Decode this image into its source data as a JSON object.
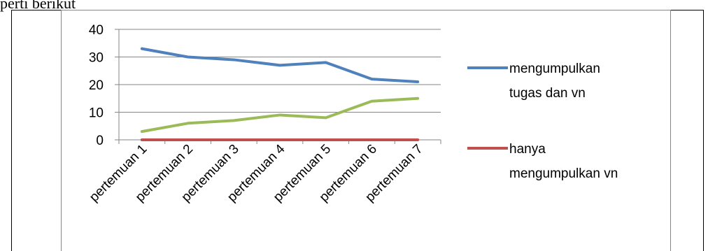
{
  "document": {
    "caption_fragment": "perti berikut"
  },
  "chart_data": {
    "type": "line",
    "categories": [
      "pertemuan 1",
      "pertemuan 2",
      "pertemuan 3",
      "pertemuan 4",
      "pertemuan 5",
      "pertemuan 6",
      "pertemuan 7"
    ],
    "series": [
      {
        "name": "mengumpulkan tugas dan vn",
        "color": "#4F81BD",
        "values": [
          33,
          30,
          29,
          27,
          28,
          22,
          21
        ]
      },
      {
        "name": "hanya mengumpulkan vn",
        "color": "#C0504D",
        "values": [
          0,
          0,
          0,
          0,
          0,
          0,
          0
        ]
      },
      {
        "name": "",
        "color": "#9BBB59",
        "values": [
          3,
          6,
          7,
          9,
          8,
          14,
          15
        ]
      }
    ],
    "legend_lines": [
      [
        "mengumpulkan",
        "tugas dan vn"
      ],
      [
        "hanya",
        "mengumpulkan vn"
      ]
    ],
    "yticks": [
      0,
      10,
      20,
      30,
      40
    ],
    "ylim": [
      0,
      40
    ],
    "grid": true,
    "legend_position": "right"
  }
}
